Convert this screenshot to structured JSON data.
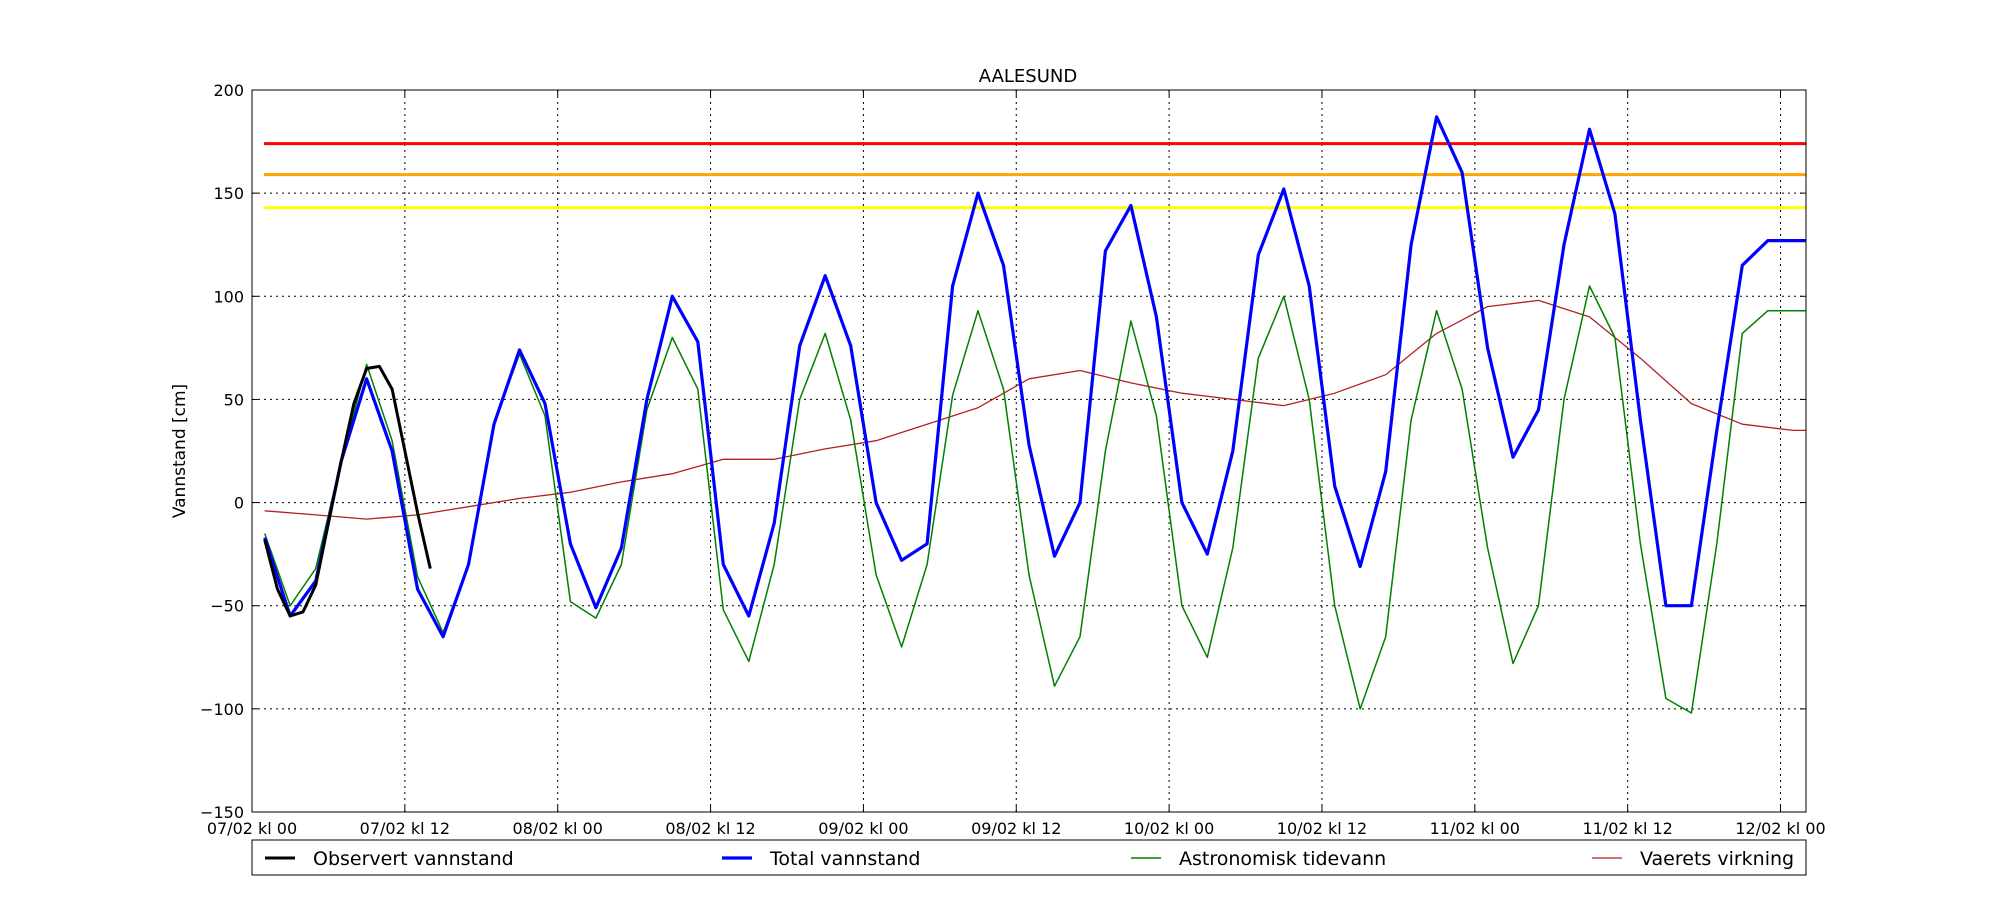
{
  "chart_data": {
    "type": "line",
    "title": "AALESUND",
    "xlabel": "",
    "ylabel": "Vannstand [cm]",
    "ylim": [
      -150,
      200
    ],
    "xlim": [
      "2016-02-07 00:00",
      "2016-02-12 02:00"
    ],
    "grid": true,
    "legend_position": "bottom",
    "x_tick_labels": [
      "07/02 kl 00",
      "07/02 kl 12",
      "08/02 kl 00",
      "08/02 kl 12",
      "09/02 kl 00",
      "09/02 kl 12",
      "10/02 kl 00",
      "10/02 kl 12",
      "11/02 kl 00",
      "11/02 kl 12",
      "12/02 kl 00"
    ],
    "y_ticks": [
      -150,
      -100,
      -50,
      0,
      50,
      100,
      150,
      200
    ],
    "threshold_lines": [
      {
        "value": 174,
        "color": "#ff0000"
      },
      {
        "value": 159,
        "color": "#ffa500"
      },
      {
        "value": 143,
        "color": "#ffff00"
      }
    ],
    "series": [
      {
        "name": "Observert vannstand",
        "color": "#000000",
        "x": [
          "07/02 01:00",
          "07/02 02:00",
          "07/02 03:00",
          "07/02 04:00",
          "07/02 05:00",
          "07/02 06:00",
          "07/02 07:00",
          "07/02 08:00",
          "07/02 09:00",
          "07/02 10:00",
          "07/02 11:00",
          "07/02 12:00",
          "07/02 13:00",
          "07/02 14:00"
        ],
        "values": [
          -18,
          -42,
          -55,
          -53,
          -40,
          -10,
          20,
          48,
          65,
          66,
          55,
          25,
          -5,
          -32
        ]
      },
      {
        "name": "Total vannstand",
        "color": "#0000ff",
        "x": [
          "07/02 01:00",
          "07/02 03:00",
          "07/02 05:00",
          "07/02 07:00",
          "07/02 09:00",
          "07/02 11:00",
          "07/02 13:00",
          "07/02 15:00",
          "07/02 17:00",
          "07/02 19:00",
          "07/02 21:00",
          "07/02 23:00",
          "08/02 01:00",
          "08/02 03:00",
          "08/02 05:00",
          "08/02 07:00",
          "08/02 09:00",
          "08/02 11:00",
          "08/02 13:00",
          "08/02 15:00",
          "08/02 17:00",
          "08/02 19:00",
          "08/02 21:00",
          "08/02 23:00",
          "09/02 01:00",
          "09/02 03:00",
          "09/02 05:00",
          "09/02 07:00",
          "09/02 09:00",
          "09/02 11:00",
          "09/02 13:00",
          "09/02 15:00",
          "09/02 17:00",
          "09/02 19:00",
          "09/02 21:00",
          "09/02 23:00",
          "10/02 01:00",
          "10/02 03:00",
          "10/02 05:00",
          "10/02 07:00",
          "10/02 09:00",
          "10/02 11:00",
          "10/02 13:00",
          "10/02 15:00",
          "10/02 17:00",
          "10/02 19:00",
          "10/02 21:00",
          "10/02 23:00",
          "11/02 01:00",
          "11/02 03:00",
          "11/02 05:00",
          "11/02 07:00",
          "11/02 09:00",
          "11/02 11:00",
          "11/02 13:00",
          "11/02 15:00",
          "11/02 17:00",
          "11/02 19:00",
          "11/02 21:00",
          "11/02 23:00",
          "12/02 01:00",
          "12/02 02:00"
        ],
        "values": [
          -17,
          -55,
          -38,
          20,
          60,
          25,
          -42,
          -65,
          -30,
          38,
          74,
          48,
          -20,
          -51,
          -22,
          50,
          100,
          78,
          -30,
          -55,
          -10,
          76,
          110,
          76,
          0,
          -28,
          -20,
          105,
          150,
          115,
          28,
          -26,
          0,
          122,
          144,
          90,
          0,
          -25,
          25,
          120,
          152,
          105,
          8,
          -31,
          15,
          125,
          187,
          160,
          75,
          22,
          45,
          125,
          181,
          140,
          40,
          -50,
          -50,
          35,
          115,
          127,
          127,
          127
        ]
      },
      {
        "name": "Astronomisk tidevann",
        "color": "#008000",
        "x": [
          "07/02 01:00",
          "07/02 03:00",
          "07/02 05:00",
          "07/02 07:00",
          "07/02 09:00",
          "07/02 11:00",
          "07/02 13:00",
          "07/02 15:00",
          "07/02 17:00",
          "07/02 19:00",
          "07/02 21:00",
          "07/02 23:00",
          "08/02 01:00",
          "08/02 03:00",
          "08/02 05:00",
          "08/02 07:00",
          "08/02 09:00",
          "08/02 11:00",
          "08/02 13:00",
          "08/02 15:00",
          "08/02 17:00",
          "08/02 19:00",
          "08/02 21:00",
          "08/02 23:00",
          "09/02 01:00",
          "09/02 03:00",
          "09/02 05:00",
          "09/02 07:00",
          "09/02 09:00",
          "09/02 11:00",
          "09/02 13:00",
          "09/02 15:00",
          "09/02 17:00",
          "09/02 19:00",
          "09/02 21:00",
          "09/02 23:00",
          "10/02 01:00",
          "10/02 03:00",
          "10/02 05:00",
          "10/02 07:00",
          "10/02 09:00",
          "10/02 11:00",
          "10/02 13:00",
          "10/02 15:00",
          "10/02 17:00",
          "10/02 19:00",
          "10/02 21:00",
          "10/02 23:00",
          "11/02 01:00",
          "11/02 03:00",
          "11/02 05:00",
          "11/02 07:00",
          "11/02 09:00",
          "11/02 11:00",
          "11/02 13:00",
          "11/02 15:00",
          "11/02 17:00",
          "11/02 19:00",
          "11/02 21:00",
          "11/02 23:00",
          "12/02 01:00",
          "12/02 02:00"
        ],
        "values": [
          -15,
          -50,
          -32,
          20,
          67,
          30,
          -36,
          -63,
          -30,
          38,
          72,
          42,
          -48,
          -56,
          -30,
          45,
          80,
          55,
          -52,
          -77,
          -30,
          50,
          82,
          40,
          -35,
          -70,
          -30,
          52,
          93,
          55,
          -35,
          -89,
          -65,
          25,
          88,
          42,
          -50,
          -75,
          -22,
          70,
          100,
          50,
          -50,
          -100,
          -65,
          40,
          93,
          55,
          -22,
          -78,
          -50,
          50,
          105,
          80,
          -20,
          -95,
          -102,
          -20,
          82,
          93,
          93,
          93
        ]
      },
      {
        "name": "Vaerets virkning",
        "color": "#b22222",
        "x": [
          "07/02 01:00",
          "07/02 05:00",
          "07/02 09:00",
          "07/02 13:00",
          "07/02 17:00",
          "07/02 21:00",
          "08/02 01:00",
          "08/02 05:00",
          "08/02 09:00",
          "08/02 13:00",
          "08/02 17:00",
          "08/02 21:00",
          "09/02 01:00",
          "09/02 05:00",
          "09/02 09:00",
          "09/02 13:00",
          "09/02 17:00",
          "09/02 21:00",
          "10/02 01:00",
          "10/02 05:00",
          "10/02 09:00",
          "10/02 13:00",
          "10/02 17:00",
          "10/02 21:00",
          "11/02 01:00",
          "11/02 05:00",
          "11/02 09:00",
          "11/02 13:00",
          "11/02 17:00",
          "11/02 21:00",
          "12/02 01:00",
          "12/02 02:00"
        ],
        "values": [
          -4,
          -6,
          -8,
          -6,
          -2,
          2,
          5,
          10,
          14,
          21,
          21,
          26,
          30,
          38,
          46,
          60,
          64,
          58,
          53,
          50,
          47,
          53,
          62,
          82,
          95,
          98,
          90,
          70,
          48,
          38,
          35,
          35
        ]
      }
    ]
  }
}
